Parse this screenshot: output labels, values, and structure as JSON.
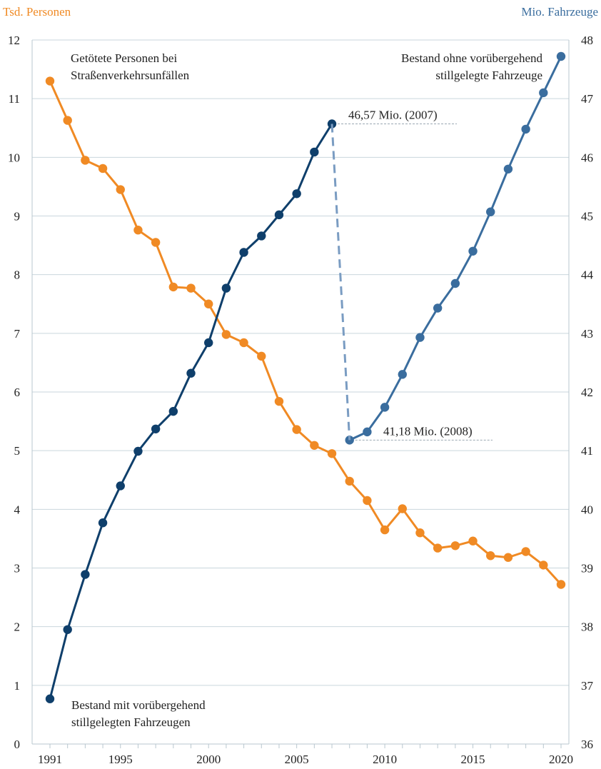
{
  "chart_data": {
    "type": "line",
    "left_axis": {
      "unit_label": "Tsd. Personen",
      "ylim": [
        0,
        12
      ],
      "ticks": [
        "0",
        "1",
        "2",
        "3",
        "4",
        "5",
        "6",
        "7",
        "8",
        "9",
        "10",
        "11",
        "12"
      ],
      "color": "#f08a24"
    },
    "right_axis": {
      "unit_label": "Mio. Fahrzeuge",
      "ylim": [
        36,
        48
      ],
      "ticks": [
        "36",
        "37",
        "38",
        "39",
        "40",
        "41",
        "42",
        "43",
        "44",
        "45",
        "46",
        "47",
        "48"
      ],
      "color": "#3a6d9e"
    },
    "x_ticks": [
      "1991",
      "1995",
      "2000",
      "2005",
      "2010",
      "2015",
      "2020"
    ],
    "x_range": [
      1991,
      2020
    ],
    "grid": true,
    "series": [
      {
        "name": "Getötete Personen bei Straßenverkehrsunfällen",
        "axis": "left",
        "color": "#f08a24",
        "x": [
          1991,
          1992,
          1993,
          1994,
          1995,
          1996,
          1997,
          1998,
          1999,
          2000,
          2001,
          2002,
          2003,
          2004,
          2005,
          2006,
          2007,
          2008,
          2009,
          2010,
          2011,
          2012,
          2013,
          2014,
          2015,
          2016,
          2017,
          2018,
          2019,
          2020
        ],
        "values": [
          11.3,
          10.63,
          9.95,
          9.81,
          9.45,
          8.76,
          8.55,
          7.79,
          7.77,
          7.5,
          6.98,
          6.84,
          6.61,
          5.84,
          5.36,
          5.09,
          4.95,
          4.48,
          4.15,
          3.65,
          4.01,
          3.6,
          3.34,
          3.38,
          3.46,
          3.21,
          3.18,
          3.28,
          3.05,
          2.72
        ]
      },
      {
        "name": "Bestand mit vorübergehend stillgelegten Fahrzeugen",
        "axis": "right",
        "color": "#0f3f6b",
        "x": [
          1991,
          1992,
          1993,
          1994,
          1995,
          1996,
          1997,
          1998,
          1999,
          2000,
          2001,
          2002,
          2003,
          2004,
          2005,
          2006,
          2007
        ],
        "values": [
          36.77,
          37.95,
          38.89,
          39.77,
          40.4,
          40.99,
          41.37,
          41.67,
          42.32,
          42.84,
          43.77,
          44.38,
          44.66,
          45.02,
          45.38,
          46.09,
          46.57
        ]
      },
      {
        "name": "Bestand ohne vorübergehend stillgelegte Fahrzeuge",
        "axis": "right",
        "color": "#3a6d9e",
        "x": [
          2008,
          2009,
          2010,
          2011,
          2012,
          2013,
          2014,
          2015,
          2016,
          2017,
          2018,
          2019,
          2020
        ],
        "values": [
          41.18,
          41.32,
          41.74,
          42.3,
          42.93,
          43.43,
          43.85,
          44.4,
          45.07,
          45.8,
          46.48,
          47.1,
          47.72
        ]
      }
    ],
    "annotations": {
      "deaths_label": [
        "Getötete Personen bei",
        "Straßenverkehrsunfällen"
      ],
      "with_label": [
        "Bestand mit vorübergehend",
        "stillgelegten Fahrzeugen"
      ],
      "without_label": [
        "Bestand ohne vorübergehend",
        "stillgelegte Fahrzeuge"
      ],
      "break_2007": "46,57 Mio. (2007)",
      "break_2008": "41,18 Mio. (2008)"
    }
  }
}
